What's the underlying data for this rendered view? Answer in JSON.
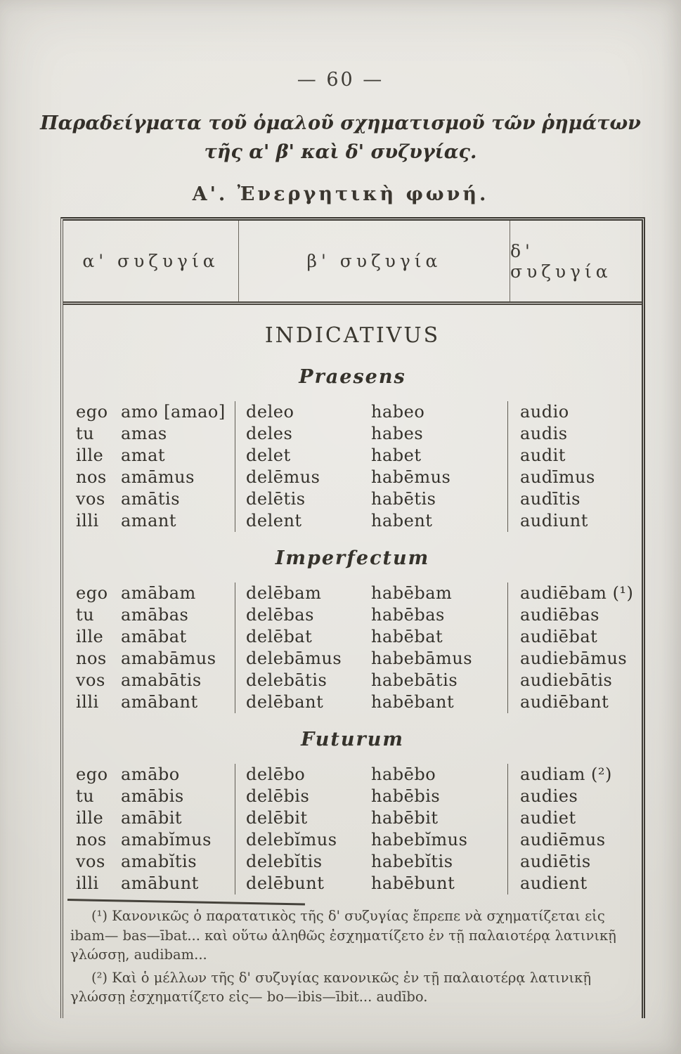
{
  "page": {
    "number": "— 60 —",
    "title_line1": "Παραδείγματα τοῦ ὁμαλοῦ σχηματισμοῦ τῶν ῥημάτων",
    "title_line2": "τῆς α' β' καὶ δ' συζυγίας.",
    "section_heading": "Α'. Ἐνεργητικὴ φωνή."
  },
  "table": {
    "col_headers": [
      "α' συζυγία",
      "β' συζυγία",
      "δ' συζυγία"
    ],
    "mood_heading": "INDICATIVUS",
    "tenses": [
      {
        "name": "Praesens",
        "rows": [
          [
            "ego",
            "amo [amao]",
            "deleo",
            "habeo",
            "audio"
          ],
          [
            "tu",
            "amas",
            "deles",
            "habes",
            "audis"
          ],
          [
            "ille",
            "amat",
            "delet",
            "habet",
            "audit"
          ],
          [
            "nos",
            "amāmus",
            "delēmus",
            "habēmus",
            "audīmus"
          ],
          [
            "vos",
            "amātis",
            "delētis",
            "habētis",
            "audītis"
          ],
          [
            "illi",
            "amant",
            "delent",
            "habent",
            "audiunt"
          ]
        ]
      },
      {
        "name": "Imperfectum",
        "rows": [
          [
            "ego",
            "amābam",
            "delēbam",
            "habēbam",
            "audiēbam (¹)"
          ],
          [
            "tu",
            "amābas",
            "delēbas",
            "habēbas",
            "audiēbas"
          ],
          [
            "ille",
            "amābat",
            "delēbat",
            "habēbat",
            "audiēbat"
          ],
          [
            "nos",
            "amabāmus",
            "delebāmus",
            "habebāmus",
            "audiebāmus"
          ],
          [
            "vos",
            "amabātis",
            "delebātis",
            "habebātis",
            "audiebātis"
          ],
          [
            "illi",
            "amābant",
            "delēbant",
            "habēbant",
            "audiēbant"
          ]
        ]
      },
      {
        "name": "Futurum",
        "rows": [
          [
            "ego",
            "amābo",
            "delēbo",
            "habēbo",
            "audiam (²)"
          ],
          [
            "tu",
            "amābis",
            "delēbis",
            "habēbis",
            "audies"
          ],
          [
            "ille",
            "amābit",
            "delēbit",
            "habēbit",
            "audiet"
          ],
          [
            "nos",
            "amabĭmus",
            "delebĭmus",
            "habebĭmus",
            "audiēmus"
          ],
          [
            "vos",
            "amabĭtis",
            "delebĭtis",
            "habebĭtis",
            "audiētis"
          ],
          [
            "illi",
            "amābunt",
            "delēbunt",
            "habēbunt",
            "audient"
          ]
        ]
      }
    ]
  },
  "footnotes": [
    "(¹) Κανονικῶς ὁ παρατατικὸς τῆς δ' συζυγίας ἔπρεπε νὰ σχηματίζεται εἰς ibam— bas—ībat... καὶ οὕτω ἀληθῶς ἐσχηματίζετο ἐν τῇ παλαιοτέρᾳ λατινικῇ γλώσσῃ, audibam...",
    "(²) Καὶ ὁ μέλλων τῆς δ' συζυγίας κανονικῶς ἐν τῇ παλαιοτέρᾳ λατινικῇ γλώσσῃ ἐσχηματίζετο εἰς— bo—ibis—ībit... audībo."
  ],
  "colors": {
    "paper": "#e3e1db",
    "ink": "#36332e",
    "rule": "#4a463f"
  }
}
